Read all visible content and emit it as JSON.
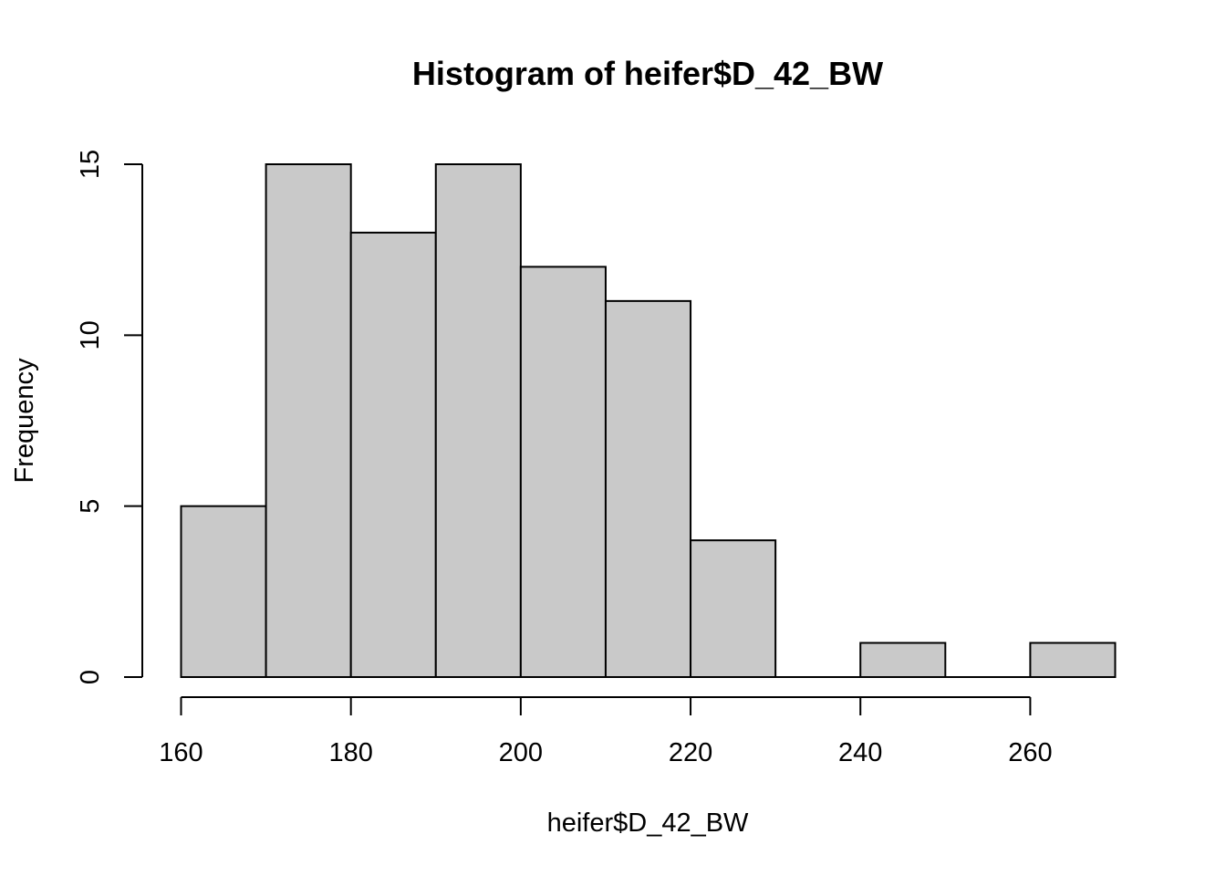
{
  "chart_data": {
    "type": "bar",
    "title": "Histogram of heifer$D_42_BW",
    "xlabel": "heifer$D_42_BW",
    "ylabel": "Frequency",
    "bins": [
      {
        "from": 160,
        "to": 170,
        "count": 5
      },
      {
        "from": 170,
        "to": 180,
        "count": 15
      },
      {
        "from": 180,
        "to": 190,
        "count": 13
      },
      {
        "from": 190,
        "to": 200,
        "count": 15
      },
      {
        "from": 200,
        "to": 210,
        "count": 12
      },
      {
        "from": 210,
        "to": 220,
        "count": 11
      },
      {
        "from": 220,
        "to": 230,
        "count": 4
      },
      {
        "from": 230,
        "to": 240,
        "count": 0
      },
      {
        "from": 240,
        "to": 250,
        "count": 1
      },
      {
        "from": 250,
        "to": 260,
        "count": 0
      },
      {
        "from": 260,
        "to": 270,
        "count": 1
      }
    ],
    "xlim": [
      160,
      270
    ],
    "ylim": [
      0,
      15
    ],
    "x_ticks": [
      160,
      180,
      200,
      220,
      240,
      260
    ],
    "y_ticks": [
      0,
      5,
      10,
      15
    ],
    "grid": false,
    "legend": "none",
    "bar_color": "#c9c9c9",
    "edge_color": "#000000"
  }
}
